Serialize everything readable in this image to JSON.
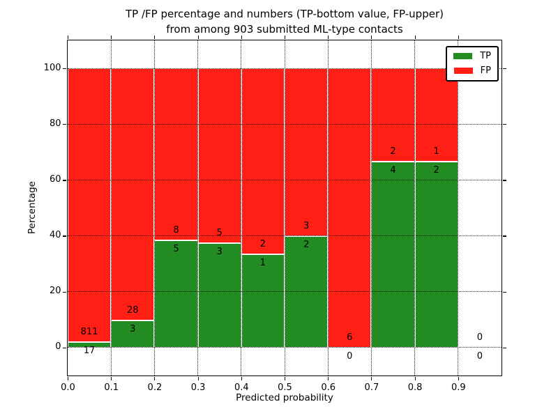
{
  "figure": {
    "title_line1": "TP /FP percentage and numbers (TP-bottom value, FP-upper)",
    "title_line2": "from among 903 submitted ML-type contacts"
  },
  "chart_data": {
    "type": "bar",
    "subtype": "stacked-100-percent",
    "title": "TP /FP percentage and numbers (TP-bottom value, FP-upper)\nfrom among 903 submitted ML-type contacts",
    "xlabel": "Predicted probability",
    "ylabel": "Percentage",
    "total_contacts": 903,
    "xlim": [
      0.0,
      1.0
    ],
    "ylim": [
      -10,
      110
    ],
    "xticks": [
      0.0,
      0.1,
      0.2,
      0.3,
      0.4,
      0.5,
      0.6,
      0.7,
      0.8,
      0.9
    ],
    "xtick_labels": [
      "0.0",
      "0.1",
      "0.2",
      "0.3",
      "0.4",
      "0.5",
      "0.6",
      "0.7",
      "0.8",
      "0.9"
    ],
    "yticks": [
      0,
      20,
      40,
      60,
      80,
      100
    ],
    "ytick_labels": [
      "0",
      "20",
      "40",
      "60",
      "80",
      "100"
    ],
    "grid": "dotted",
    "grid_over_bars": true,
    "legend": {
      "position": "upper-right",
      "entries": [
        {
          "label": "TP",
          "color": "#228b22"
        },
        {
          "label": "FP",
          "color": "#ff1f14"
        }
      ]
    },
    "colors": {
      "tp": "#228b22",
      "fp": "#ff1f14",
      "bar_edge": "#ffffff"
    },
    "bins": [
      {
        "x_range": [
          0.0,
          0.1
        ],
        "tp": 17,
        "fp": 811,
        "tp_percent": 2.05
      },
      {
        "x_range": [
          0.1,
          0.2
        ],
        "tp": 3,
        "fp": 28,
        "tp_percent": 9.68
      },
      {
        "x_range": [
          0.2,
          0.3
        ],
        "tp": 5,
        "fp": 8,
        "tp_percent": 38.46
      },
      {
        "x_range": [
          0.3,
          0.4
        ],
        "tp": 3,
        "fp": 5,
        "tp_percent": 37.5
      },
      {
        "x_range": [
          0.4,
          0.5
        ],
        "tp": 1,
        "fp": 2,
        "tp_percent": 33.33
      },
      {
        "x_range": [
          0.5,
          0.6
        ],
        "tp": 2,
        "fp": 3,
        "tp_percent": 40.0
      },
      {
        "x_range": [
          0.6,
          0.7
        ],
        "tp": 0,
        "fp": 6,
        "tp_percent": 0.0
      },
      {
        "x_range": [
          0.7,
          0.8
        ],
        "tp": 4,
        "fp": 2,
        "tp_percent": 66.67
      },
      {
        "x_range": [
          0.8,
          0.9
        ],
        "tp": 2,
        "fp": 1,
        "tp_percent": 66.67
      },
      {
        "x_range": [
          0.9,
          1.0
        ],
        "tp": 0,
        "fp": 0,
        "tp_percent": null
      }
    ]
  }
}
